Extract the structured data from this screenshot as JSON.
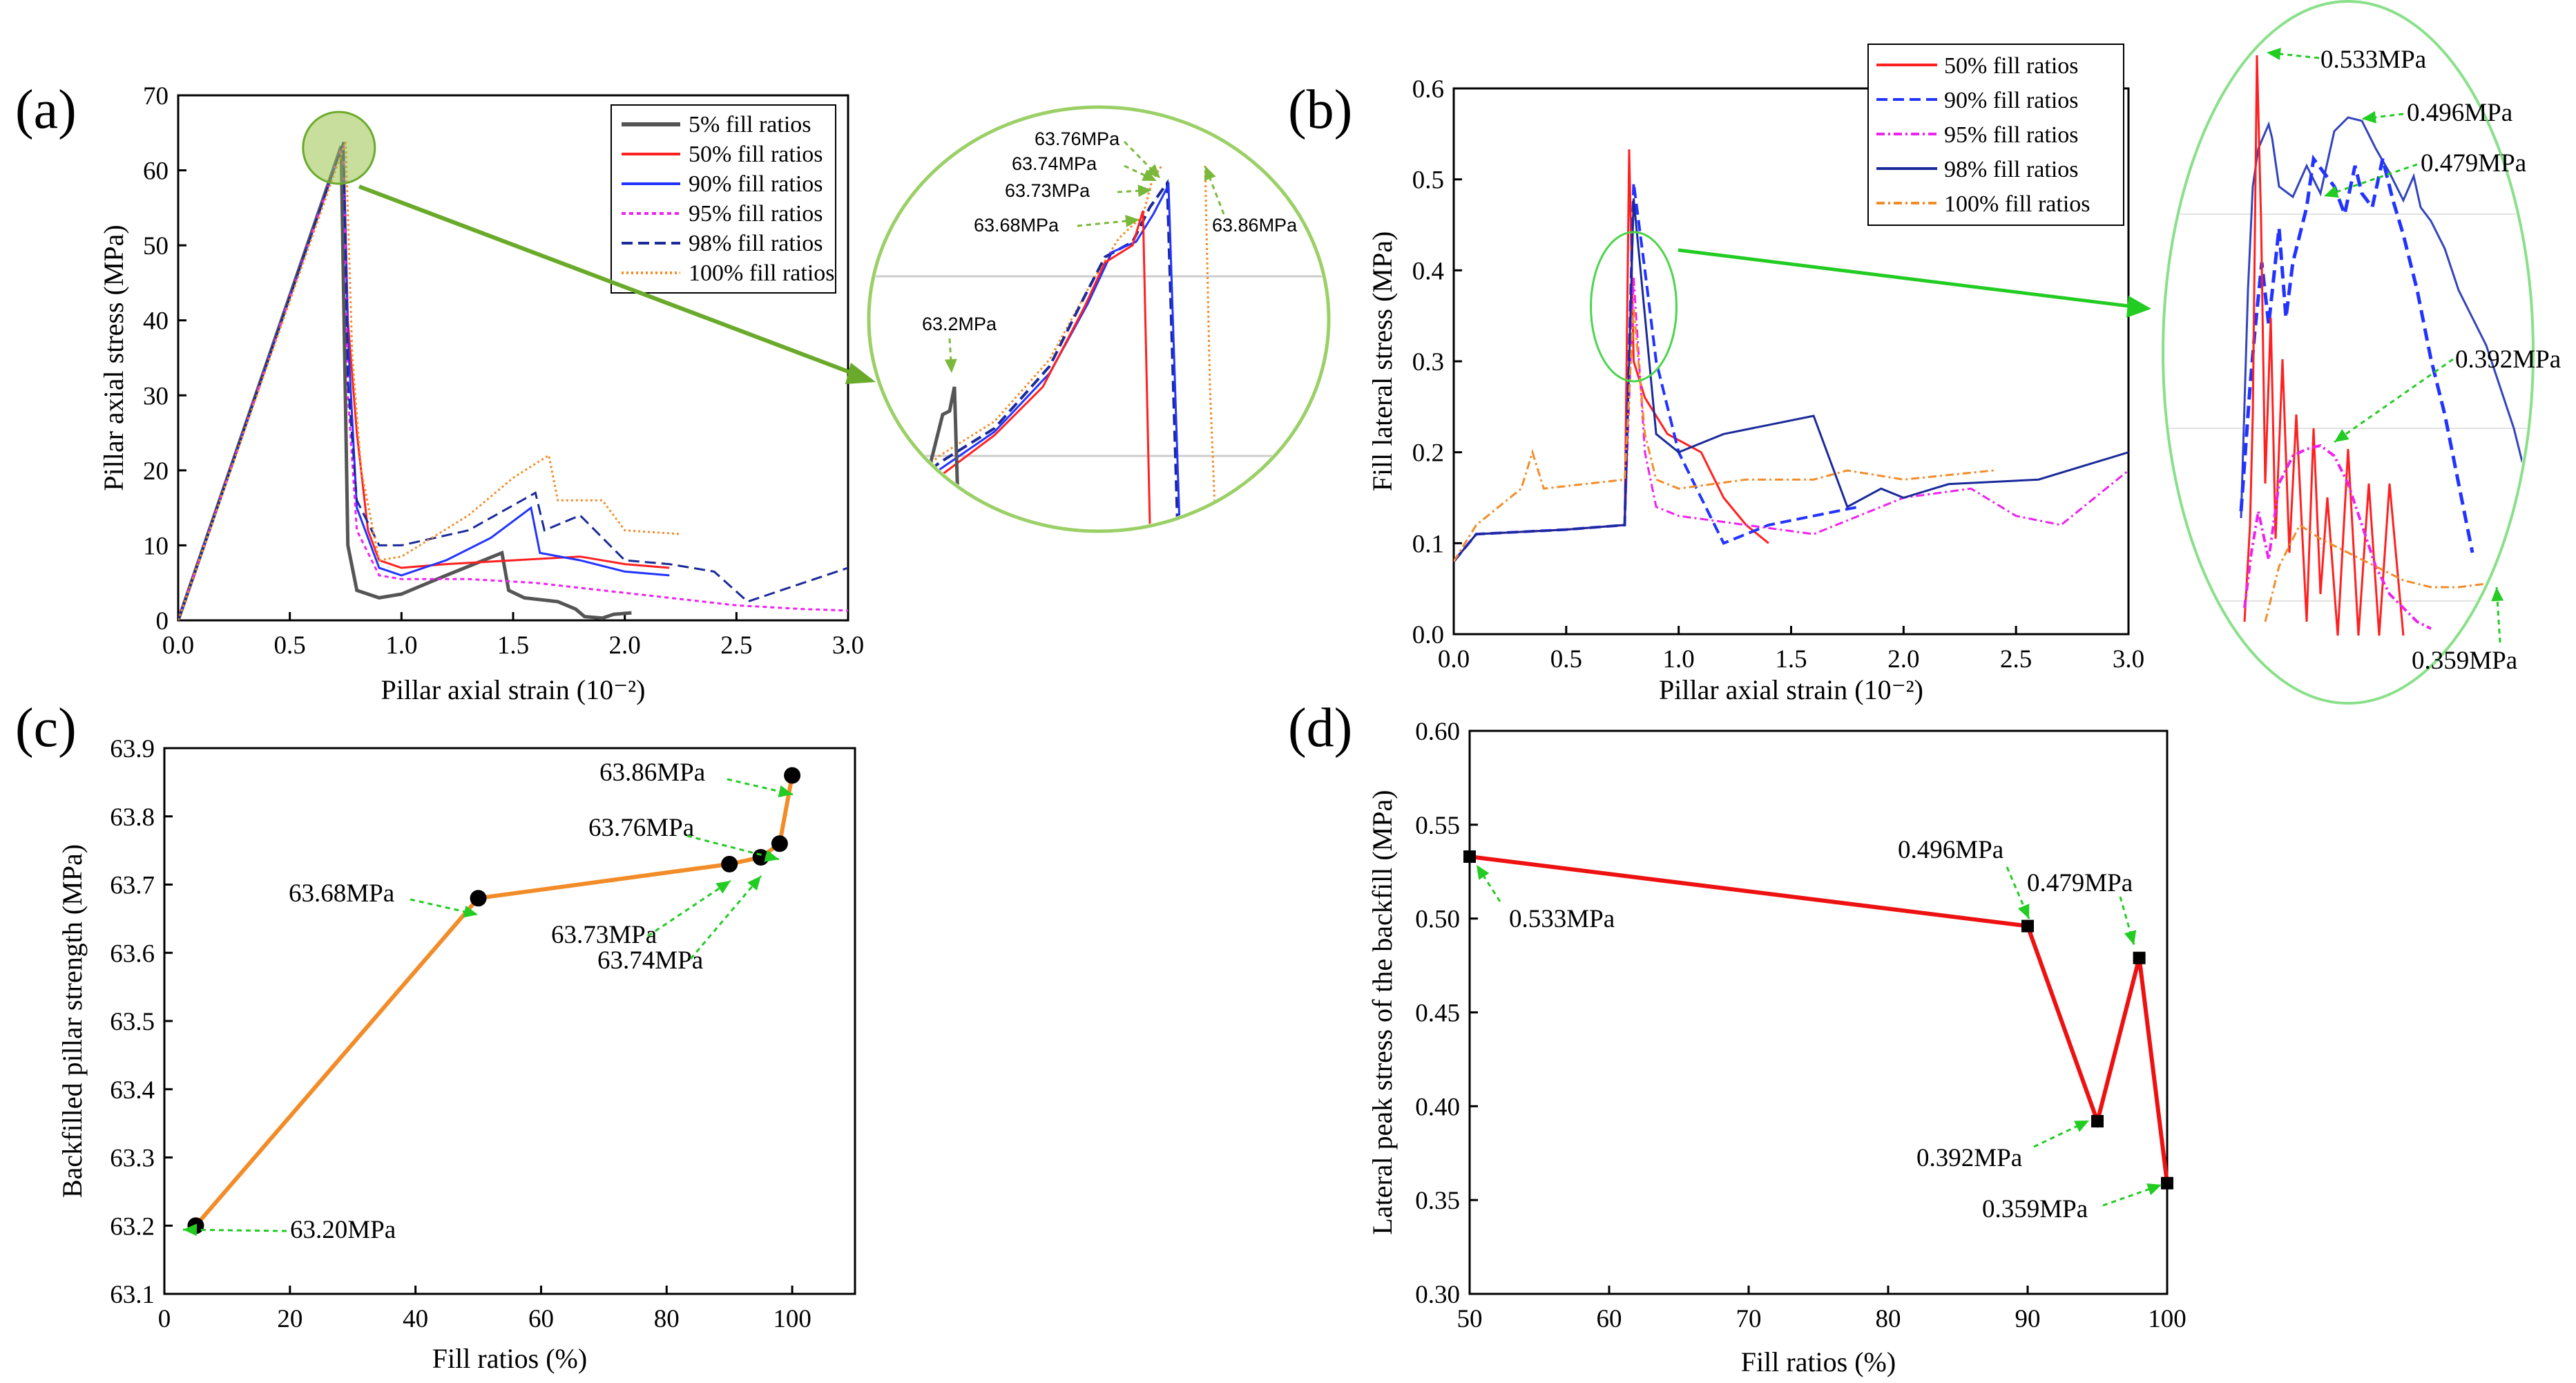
{
  "chart_data": [
    {
      "id": "a",
      "type": "line",
      "panel_label": "(a)",
      "xlabel": "Pillar axial strain (10⁻²)",
      "ylabel": "Pillar axial stress (MPa)",
      "xlim": [
        0,
        3.0
      ],
      "ylim": [
        0,
        70
      ],
      "xticks": [
        "0.0",
        "0.5",
        "1.0",
        "1.5",
        "2.0",
        "2.5",
        "3.0"
      ],
      "yticks": [
        "0",
        "10",
        "20",
        "30",
        "40",
        "50",
        "60",
        "70"
      ],
      "legend": [
        "5% fill ratios",
        "50% fill ratios",
        "90% fill ratios",
        "95% fill ratios",
        "98% fill ratios",
        "100% fill ratios"
      ],
      "series": [
        {
          "name": "5% fill ratios",
          "color": "#555555",
          "dash": "",
          "points": [
            [
              0,
              0
            ],
            [
              0.73,
              63.2
            ],
            [
              0.76,
              10
            ],
            [
              0.8,
              4
            ],
            [
              0.9,
              3
            ],
            [
              1.0,
              3.5
            ],
            [
              1.2,
              6
            ],
            [
              1.45,
              9
            ],
            [
              1.48,
              4
            ],
            [
              1.55,
              3
            ],
            [
              1.7,
              2.5
            ],
            [
              1.78,
              1.5
            ],
            [
              1.82,
              0.5
            ],
            [
              1.9,
              0.3
            ],
            [
              1.95,
              0.8
            ],
            [
              2.03,
              1
            ]
          ]
        },
        {
          "name": "50% fill ratios",
          "color": "#ff2020",
          "dash": "",
          "points": [
            [
              0,
              0
            ],
            [
              0.74,
              63.68
            ],
            [
              0.76,
              40
            ],
            [
              0.8,
              25
            ],
            [
              0.85,
              12
            ],
            [
              0.9,
              8
            ],
            [
              1.0,
              7
            ],
            [
              1.2,
              7.5
            ],
            [
              1.5,
              8
            ],
            [
              1.8,
              8.5
            ],
            [
              2.0,
              7.5
            ],
            [
              2.2,
              7
            ]
          ]
        },
        {
          "name": "90% fill ratios",
          "color": "#2233ff",
          "dash": "",
          "points": [
            [
              0,
              0
            ],
            [
              0.74,
              63.73
            ],
            [
              0.76,
              38
            ],
            [
              0.8,
              15
            ],
            [
              0.9,
              7
            ],
            [
              1.0,
              6
            ],
            [
              1.2,
              8
            ],
            [
              1.4,
              11
            ],
            [
              1.58,
              15
            ],
            [
              1.62,
              9
            ],
            [
              1.8,
              8
            ],
            [
              2.0,
              6.5
            ],
            [
              2.2,
              6
            ]
          ]
        },
        {
          "name": "95% fill ratios",
          "color": "#ee22ee",
          "dash": "6 5",
          "points": [
            [
              0,
              0
            ],
            [
              0.74,
              63.74
            ],
            [
              0.76,
              30
            ],
            [
              0.8,
              12
            ],
            [
              0.9,
              6
            ],
            [
              1.0,
              5.5
            ],
            [
              1.3,
              5.5
            ],
            [
              1.6,
              5
            ],
            [
              1.9,
              4
            ],
            [
              2.2,
              3
            ],
            [
              2.5,
              2
            ],
            [
              2.8,
              1.5
            ],
            [
              3.0,
              1.3
            ]
          ]
        },
        {
          "name": "98% fill ratios",
          "color": "#1a2a99",
          "dash": "16 8",
          "points": [
            [
              0,
              0
            ],
            [
              0.74,
              63.76
            ],
            [
              0.76,
              32
            ],
            [
              0.8,
              16
            ],
            [
              0.9,
              10
            ],
            [
              1.0,
              10
            ],
            [
              1.3,
              12
            ],
            [
              1.6,
              17
            ],
            [
              1.64,
              12
            ],
            [
              1.8,
              14
            ],
            [
              2.0,
              8
            ],
            [
              2.2,
              7.5
            ],
            [
              2.4,
              6.5
            ],
            [
              2.55,
              2.5
            ],
            [
              2.8,
              5
            ],
            [
              3.0,
              7
            ]
          ]
        },
        {
          "name": "100% fill ratios",
          "color": "#f28c28",
          "dash": "3 4",
          "points": [
            [
              0,
              0
            ],
            [
              0.75,
              63.86
            ],
            [
              0.78,
              35
            ],
            [
              0.82,
              20
            ],
            [
              0.9,
              8
            ],
            [
              1.0,
              8.5
            ],
            [
              1.3,
              14
            ],
            [
              1.5,
              19
            ],
            [
              1.66,
              22
            ],
            [
              1.7,
              16
            ],
            [
              1.9,
              16
            ],
            [
              2.0,
              12
            ],
            [
              2.25,
              11.5
            ]
          ]
        }
      ],
      "inset_labels": [
        "63.76MPa",
        "63.74MPa",
        "63.73MPa",
        "63.68MPa",
        "63.2MPa",
        "63.86MPa"
      ]
    },
    {
      "id": "b",
      "type": "line",
      "panel_label": "(b)",
      "xlabel": "Pillar axial strain (10⁻²)",
      "ylabel": "Fill lateral stress (MPa)",
      "xlim": [
        0,
        3.0
      ],
      "ylim": [
        0,
        0.6
      ],
      "xticks": [
        "0.0",
        "0.5",
        "1.0",
        "1.5",
        "2.0",
        "2.5",
        "3.0"
      ],
      "yticks": [
        "0.0",
        "0.1",
        "0.2",
        "0.3",
        "0.4",
        "0.5",
        "0.6"
      ],
      "legend": [
        "50% fill ratios",
        "90% fill ratios",
        "95% fill ratios",
        "98% fill ratios",
        "100% fill ratios"
      ],
      "series": [
        {
          "name": "50% fill ratios",
          "color": "#ff2020",
          "dash": "",
          "points": [
            [
              0,
              0.08
            ],
            [
              0.1,
              0.11
            ],
            [
              0.5,
              0.115
            ],
            [
              0.76,
              0.12
            ],
            [
              0.78,
              0.533
            ],
            [
              0.8,
              0.3
            ],
            [
              0.85,
              0.26
            ],
            [
              0.95,
              0.22
            ],
            [
              1.1,
              0.2
            ],
            [
              1.2,
              0.15
            ],
            [
              1.3,
              0.12
            ],
            [
              1.4,
              0.1
            ]
          ]
        },
        {
          "name": "90% fill ratios",
          "color": "#2233ff",
          "dash": "16 8",
          "points": [
            [
              0,
              0.08
            ],
            [
              0.1,
              0.11
            ],
            [
              0.5,
              0.115
            ],
            [
              0.76,
              0.12
            ],
            [
              0.8,
              0.496
            ],
            [
              0.85,
              0.4
            ],
            [
              0.9,
              0.3
            ],
            [
              1.0,
              0.2
            ],
            [
              1.1,
              0.15
            ],
            [
              1.2,
              0.1
            ],
            [
              1.4,
              0.12
            ],
            [
              1.6,
              0.13
            ],
            [
              1.8,
              0.14
            ]
          ]
        },
        {
          "name": "95% fill ratios",
          "color": "#ee22ee",
          "dash": "12 5 3 5",
          "points": [
            [
              0,
              0.08
            ],
            [
              0.1,
              0.11
            ],
            [
              0.5,
              0.115
            ],
            [
              0.76,
              0.12
            ],
            [
              0.8,
              0.392
            ],
            [
              0.85,
              0.2
            ],
            [
              0.9,
              0.14
            ],
            [
              1.0,
              0.13
            ],
            [
              1.3,
              0.12
            ],
            [
              1.6,
              0.11
            ],
            [
              2.0,
              0.15
            ],
            [
              2.3,
              0.16
            ],
            [
              2.5,
              0.13
            ],
            [
              2.7,
              0.12
            ],
            [
              3.0,
              0.18
            ]
          ]
        },
        {
          "name": "98% fill ratios",
          "color": "#1a2a99",
          "dash": "",
          "points": [
            [
              0,
              0.08
            ],
            [
              0.1,
              0.11
            ],
            [
              0.5,
              0.115
            ],
            [
              0.76,
              0.12
            ],
            [
              0.8,
              0.479
            ],
            [
              0.85,
              0.35
            ],
            [
              0.9,
              0.22
            ],
            [
              1.0,
              0.2
            ],
            [
              1.2,
              0.22
            ],
            [
              1.4,
              0.23
            ],
            [
              1.6,
              0.24
            ],
            [
              1.75,
              0.14
            ],
            [
              1.9,
              0.16
            ],
            [
              2.0,
              0.15
            ],
            [
              2.2,
              0.165
            ],
            [
              2.6,
              0.17
            ],
            [
              3.0,
              0.2
            ]
          ]
        },
        {
          "name": "100% fill ratios",
          "color": "#f28c28",
          "dash": "12 5 3 5",
          "points": [
            [
              0,
              0.08
            ],
            [
              0.1,
              0.12
            ],
            [
              0.3,
              0.16
            ],
            [
              0.35,
              0.2
            ],
            [
              0.4,
              0.16
            ],
            [
              0.76,
              0.17
            ],
            [
              0.8,
              0.359
            ],
            [
              0.85,
              0.22
            ],
            [
              0.9,
              0.17
            ],
            [
              1.0,
              0.16
            ],
            [
              1.3,
              0.17
            ],
            [
              1.6,
              0.17
            ],
            [
              1.75,
              0.18
            ],
            [
              2.0,
              0.17
            ],
            [
              2.4,
              0.18
            ]
          ]
        }
      ],
      "inset_labels": [
        "0.533MPa",
        "0.496MPa",
        "0.479MPa",
        "0.392MPa",
        "0.359MPa"
      ]
    },
    {
      "id": "c",
      "type": "line",
      "panel_label": "(c)",
      "xlabel": "Fill ratios (%)",
      "ylabel": "Backfilled pillar strength (MPa)",
      "xlim": [
        0,
        110
      ],
      "ylim": [
        63.1,
        63.9
      ],
      "xticks": [
        "0",
        "20",
        "40",
        "60",
        "80",
        "100"
      ],
      "yticks": [
        "63.1",
        "63.2",
        "63.3",
        "63.4",
        "63.5",
        "63.6",
        "63.7",
        "63.8",
        "63.9"
      ],
      "color": "#f28c28",
      "x": [
        5,
        50,
        90,
        95,
        98,
        100
      ],
      "y": [
        63.2,
        63.68,
        63.73,
        63.74,
        63.76,
        63.86
      ],
      "labels": [
        "63.20MPa",
        "63.68MPa",
        "63.73MPa",
        "63.74MPa",
        "63.76MPa",
        "63.86MPa"
      ]
    },
    {
      "id": "d",
      "type": "line",
      "panel_label": "(d)",
      "xlabel": "Fill ratios (%)",
      "ylabel": "Lateral peak stress of the backfill (MPa)",
      "xlim": [
        50,
        100
      ],
      "ylim": [
        0.3,
        0.6
      ],
      "xticks": [
        "50",
        "60",
        "70",
        "80",
        "90",
        "100"
      ],
      "yticks": [
        "0.30",
        "0.35",
        "0.40",
        "0.45",
        "0.50",
        "0.55",
        "0.60"
      ],
      "color": "#ee1111",
      "x": [
        50,
        90,
        95,
        98,
        100
      ],
      "y": [
        0.533,
        0.496,
        0.392,
        0.479,
        0.359
      ],
      "labels": [
        "0.533MPa",
        "0.496MPa",
        "0.392MPa",
        "0.479MPa",
        "0.359MPa"
      ]
    }
  ]
}
